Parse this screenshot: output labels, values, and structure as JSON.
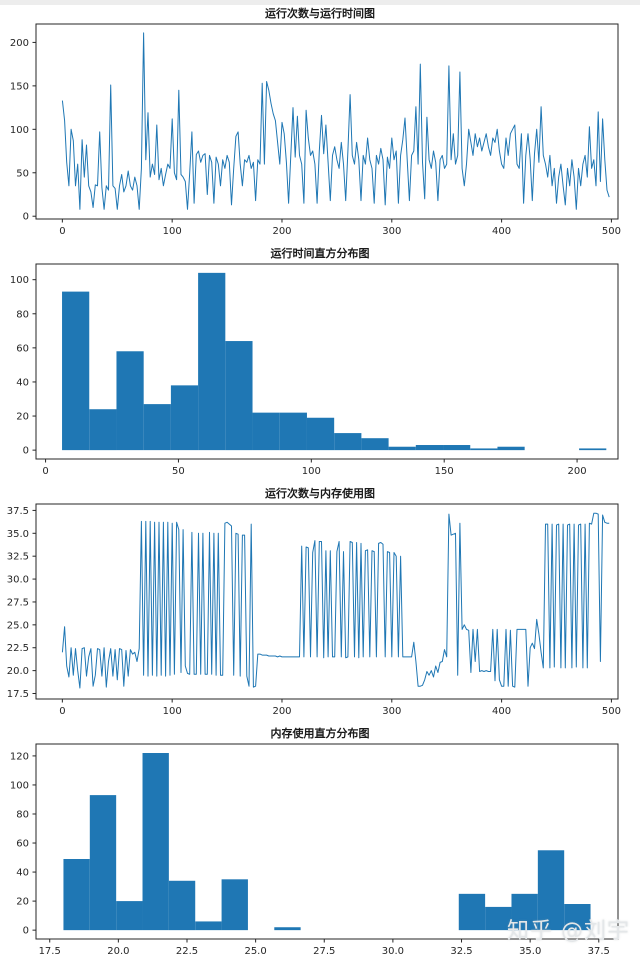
{
  "watermark": {
    "text": "知乎 @刘宇"
  },
  "colors": {
    "series": "#1f77b4",
    "axis": "#262626",
    "text": "#262626"
  },
  "chart_data": [
    {
      "type": "line",
      "title": "运行次数与运行时间图",
      "xlabel": "",
      "ylabel": "",
      "xlim": [
        -24,
        506
      ],
      "ylim": [
        -3.2,
        221.2
      ],
      "xticks": [
        0,
        100,
        200,
        300,
        400,
        500
      ],
      "xtick_labels": [
        "0",
        "100",
        "200",
        "300",
        "400",
        "500"
      ],
      "yticks": [
        0,
        50,
        100,
        150,
        200
      ],
      "ytick_labels": [
        "0",
        "50",
        "100",
        "150",
        "200"
      ],
      "grid": false,
      "legend": "none",
      "x_start": 0,
      "x_step": 2,
      "values": [
        133,
        110,
        62,
        35,
        100,
        87,
        35,
        60,
        8,
        88,
        45,
        82,
        35,
        28,
        10,
        36,
        35,
        97,
        33,
        8,
        35,
        30,
        151,
        35,
        32,
        8,
        35,
        48,
        28,
        35,
        52,
        35,
        30,
        45,
        35,
        8,
        55,
        211,
        65,
        119,
        45,
        60,
        48,
        105,
        42,
        55,
        35,
        48,
        60,
        55,
        112,
        50,
        42,
        145,
        48,
        45,
        40,
        8,
        50,
        97,
        15,
        71,
        75,
        62,
        70,
        72,
        25,
        70,
        62,
        15,
        68,
        60,
        35,
        65,
        55,
        70,
        62,
        13,
        55,
        92,
        97,
        60,
        35,
        65,
        62,
        70,
        55,
        62,
        18,
        65,
        60,
        153,
        60,
        155,
        145,
        130,
        118,
        110,
        85,
        60,
        108,
        95,
        62,
        15,
        70,
        125,
        68,
        115,
        70,
        60,
        15,
        122,
        90,
        70,
        75,
        60,
        15,
        75,
        116,
        72,
        105,
        62,
        18,
        70,
        80,
        65,
        55,
        85,
        60,
        18,
        75,
        140,
        70,
        60,
        85,
        65,
        18,
        70,
        60,
        90,
        65,
        55,
        15,
        70,
        60,
        78,
        65,
        13,
        68,
        55,
        90,
        65,
        75,
        15,
        70,
        88,
        113,
        65,
        18,
        70,
        75,
        126,
        60,
        175,
        62,
        20,
        114,
        65,
        55,
        75,
        62,
        18,
        65,
        70,
        55,
        60,
        173,
        65,
        95,
        60,
        70,
        166,
        55,
        35,
        60,
        100,
        85,
        70,
        95,
        80,
        90,
        75,
        85,
        95,
        80,
        70,
        90,
        85,
        100,
        75,
        60,
        55,
        90,
        70,
        95,
        100,
        105,
        60,
        55,
        95,
        15,
        70,
        95,
        65,
        18,
        72,
        100,
        62,
        126,
        70,
        60,
        45,
        70,
        35,
        55,
        15,
        45,
        60,
        35,
        13,
        55,
        35,
        65,
        45,
        8,
        55,
        35,
        60,
        70,
        45,
        103,
        55,
        65,
        35,
        120,
        40,
        112,
        65,
        30,
        22
      ]
    },
    {
      "type": "bar",
      "title": "运行时间直方分布图",
      "xlabel": "",
      "ylabel": "",
      "xlim": [
        -3.6,
        215.4
      ],
      "ylim": [
        -5.2,
        109.2
      ],
      "xticks": [
        0,
        50,
        100,
        150,
        200
      ],
      "xtick_labels": [
        "0",
        "50",
        "100",
        "150",
        "200"
      ],
      "yticks": [
        0,
        20,
        40,
        60,
        80,
        100
      ],
      "ytick_labels": [
        "0",
        "20",
        "40",
        "60",
        "80",
        "100"
      ],
      "grid": false,
      "legend": "none",
      "bin_start": 6.2,
      "bin_width": 10.24,
      "values": [
        93,
        24,
        58,
        27,
        38,
        104,
        64,
        22,
        22,
        19,
        10,
        7,
        2,
        3,
        3,
        1,
        2,
        0,
        0,
        1
      ]
    },
    {
      "type": "line",
      "title": "运行次数与内存使用图",
      "xlabel": "",
      "ylabel": "",
      "xlim": [
        -24,
        506
      ],
      "ylim": [
        16.9,
        38.2
      ],
      "xticks": [
        0,
        100,
        200,
        300,
        400,
        500
      ],
      "xtick_labels": [
        "0",
        "100",
        "200",
        "300",
        "400",
        "500"
      ],
      "yticks": [
        17.5,
        20.0,
        22.5,
        25.0,
        27.5,
        30.0,
        32.5,
        35.0,
        37.5
      ],
      "ytick_labels": [
        "17.5",
        "20.0",
        "22.5",
        "25.0",
        "27.5",
        "30.0",
        "32.5",
        "35.0",
        "37.5"
      ],
      "grid": false,
      "legend": "none",
      "x_start": 0,
      "x_step": 2,
      "values": [
        22.0,
        24.8,
        20.5,
        19.3,
        22.5,
        19.5,
        22.4,
        20.0,
        18.1,
        22.4,
        22.5,
        19.4,
        21.5,
        22.4,
        18.3,
        19.5,
        22.4,
        22.3,
        19.4,
        22.5,
        18.2,
        21.0,
        22.4,
        19.4,
        22.3,
        19.0,
        22.4,
        22.3,
        18.3,
        22.2,
        19.4,
        22.3,
        21.8,
        22.0,
        21.0,
        22.4,
        36.3,
        19.5,
        36.3,
        19.4,
        36.3,
        19.5,
        36.2,
        19.4,
        36.2,
        19.5,
        36.2,
        19.4,
        36.2,
        19.5,
        36.1,
        19.6,
        36.2,
        35.4,
        19.8,
        35.4,
        20.5,
        19.7,
        19.6,
        35.1,
        19.6,
        19.6,
        35.0,
        19.6,
        35.0,
        19.6,
        19.6,
        35.1,
        19.6,
        35.0,
        19.5,
        35.0,
        19.5,
        19.5,
        36.1,
        36.2,
        36.0,
        35.8,
        19.5,
        35.0,
        34.9,
        19.4,
        34.8,
        34.8,
        19.4,
        18.3,
        36.0,
        18.2,
        18.3,
        21.8,
        21.8,
        21.7,
        21.7,
        21.7,
        21.6,
        21.6,
        21.6,
        21.6,
        21.5,
        21.6,
        21.5,
        21.5,
        21.5,
        21.5,
        21.5,
        21.5,
        21.5,
        21.5,
        21.5,
        33.6,
        21.5,
        33.5,
        33.4,
        21.5,
        32.9,
        34.2,
        21.5,
        34.1,
        34.1,
        21.4,
        33.1,
        21.5,
        33.1,
        21.5,
        21.5,
        33.0,
        34.1,
        21.5,
        33.0,
        21.4,
        21.5,
        34.1,
        34.0,
        21.5,
        34.0,
        21.4,
        33.9,
        21.5,
        33.1,
        33.2,
        21.5,
        33.1,
        33.0,
        21.5,
        33.9,
        34.0,
        33.8,
        21.5,
        33.0,
        32.9,
        21.5,
        32.9,
        32.5,
        21.5,
        32.5,
        21.5,
        21.5,
        21.5,
        21.5,
        21.5,
        23.1,
        21.0,
        18.3,
        18.3,
        18.4,
        19.0,
        19.9,
        19.5,
        20.0,
        19.3,
        20.5,
        19.8,
        20.9,
        21.0,
        22.3,
        21.5,
        37.1,
        34.8,
        34.9,
        35.0,
        19.5,
        36.1,
        24.5,
        25.0,
        24.5,
        24.4,
        19.8,
        24.5,
        21.0,
        24.5,
        19.9,
        20.0,
        19.9,
        20.0,
        19.9,
        19.9,
        24.5,
        18.9,
        24.5,
        19.0,
        18.3,
        18.3,
        24.5,
        18.3,
        24.4,
        18.3,
        18.2,
        24.5,
        24.5,
        24.5,
        24.5,
        24.5,
        18.3,
        22.5,
        23.0,
        22.4,
        25.6,
        24.0,
        22.0,
        20.3,
        36.0,
        36.0,
        20.3,
        36.0,
        20.4,
        35.9,
        36.0,
        20.3,
        36.0,
        20.3,
        35.9,
        36.0,
        20.3,
        36.0,
        20.4,
        35.9,
        36.0,
        20.3,
        36.0,
        20.3,
        36.1,
        36.0,
        37.2,
        37.2,
        37.1,
        21.0,
        37.0,
        36.2,
        36.1,
        36.1
      ]
    },
    {
      "type": "bar",
      "title": "内存使用直方分布图",
      "xlabel": "",
      "ylabel": "",
      "xlim": [
        17.0,
        38.2
      ],
      "ylim": [
        -6.1,
        128.2
      ],
      "xticks": [
        17.5,
        20.0,
        22.5,
        25.0,
        27.5,
        30.0,
        32.5,
        35.0,
        37.5
      ],
      "xtick_labels": [
        "17.5",
        "20.0",
        "22.5",
        "25.0",
        "27.5",
        "30.0",
        "32.5",
        "35.0",
        "37.5"
      ],
      "yticks": [
        0,
        20,
        40,
        60,
        80,
        100,
        120
      ],
      "ytick_labels": [
        "0",
        "20",
        "40",
        "60",
        "80",
        "100",
        "120"
      ],
      "grid": false,
      "legend": "none",
      "bin_start": 18.0,
      "bin_width": 0.96,
      "values": [
        49,
        93,
        20,
        122,
        34,
        6,
        35,
        0,
        2,
        0,
        0,
        0,
        0,
        0,
        0,
        25,
        16,
        25,
        55,
        18
      ]
    }
  ]
}
